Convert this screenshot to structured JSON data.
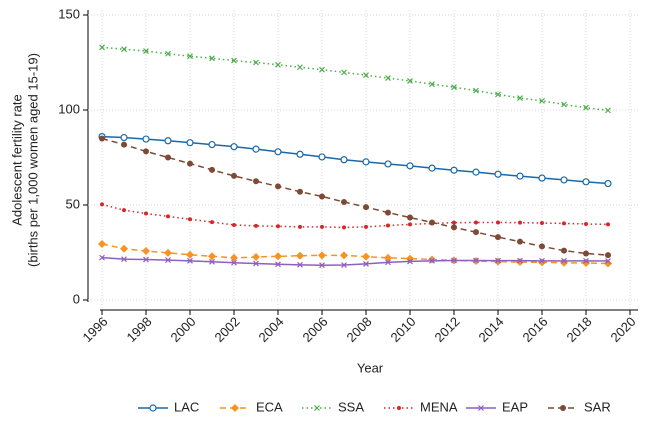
{
  "chart_data": {
    "type": "line",
    "x_label": "Year",
    "y_label": [
      "Adolescent fertility rate",
      "(births per 1,000 women aged 15-19)"
    ],
    "x": [
      1996,
      1997,
      1998,
      1999,
      2000,
      2001,
      2002,
      2003,
      2004,
      2005,
      2006,
      2007,
      2008,
      2009,
      2010,
      2011,
      2012,
      2013,
      2014,
      2015,
      2016,
      2017,
      2018,
      2019
    ],
    "xlim": [
      1996,
      2020
    ],
    "xticks": [
      1996,
      1998,
      2000,
      2002,
      2004,
      2006,
      2008,
      2010,
      2012,
      2014,
      2016,
      2018,
      2020
    ],
    "ylim": [
      0,
      150
    ],
    "yticks": [
      0,
      50,
      100,
      150
    ],
    "grid": true,
    "legend": "bottom",
    "series": [
      {
        "name": "LAC",
        "color": "#1a68a8",
        "marker": "circle",
        "dash": "solid",
        "values": [
          86,
          85.5,
          84.7,
          83.8,
          82.8,
          81.8,
          80.7,
          79.4,
          78,
          76.7,
          75.3,
          73.8,
          72.7,
          71.6,
          70.6,
          69.4,
          68.3,
          67.3,
          66.2,
          65.2,
          64.2,
          63.2,
          62.2,
          61.3
        ]
      },
      {
        "name": "ECA",
        "color": "#f7931e",
        "marker": "diamond",
        "dash": "dashed",
        "values": [
          29.5,
          27,
          25.8,
          24.8,
          23.8,
          23,
          22.2,
          22.6,
          23,
          23.3,
          23.5,
          23.5,
          22.8,
          22.2,
          21.8,
          21.3,
          20.8,
          20.5,
          20.2,
          20,
          19.8,
          19.6,
          19.5,
          19.2
        ]
      },
      {
        "name": "SSA",
        "color": "#4cae4c",
        "marker": "x",
        "dash": "dotted",
        "values": [
          133,
          132,
          131,
          129.6,
          128.3,
          127.2,
          126,
          125,
          123.8,
          122.5,
          121.2,
          119.8,
          118.3,
          116.8,
          115.3,
          113.6,
          112,
          110.2,
          108.2,
          106.3,
          104.8,
          102.9,
          101.2,
          99.8
        ]
      },
      {
        "name": "MENA",
        "color": "#d62728",
        "marker": "dot",
        "dash": "dotted",
        "values": [
          50.3,
          47.3,
          45.5,
          44,
          42.5,
          41,
          39.5,
          39,
          38.8,
          38.5,
          38.5,
          38.2,
          38.5,
          39.2,
          39.8,
          40.3,
          40.7,
          40.8,
          40.8,
          40.7,
          40.5,
          40.3,
          40,
          39.8
        ]
      },
      {
        "name": "EAP",
        "color": "#8e5fc0",
        "marker": "x",
        "dash": "solid",
        "values": [
          22.3,
          21.5,
          21.3,
          21,
          20.6,
          20.1,
          19.6,
          19.2,
          18.8,
          18.5,
          18.3,
          18.4,
          19,
          19.8,
          20.3,
          20.6,
          20.8,
          20.8,
          20.7,
          20.7,
          20.6,
          20.6,
          20.6,
          20.5
        ]
      },
      {
        "name": "SAR",
        "color": "#7f4a35",
        "marker": "circle-filled",
        "dash": "dashed",
        "values": [
          85,
          81.8,
          78.2,
          75,
          71.8,
          68.5,
          65.3,
          62.5,
          59.8,
          57,
          54.5,
          51.6,
          48.9,
          46,
          43.4,
          40.8,
          38.2,
          35.7,
          33.1,
          30.7,
          28.2,
          26,
          24.5,
          23.6
        ]
      }
    ]
  }
}
